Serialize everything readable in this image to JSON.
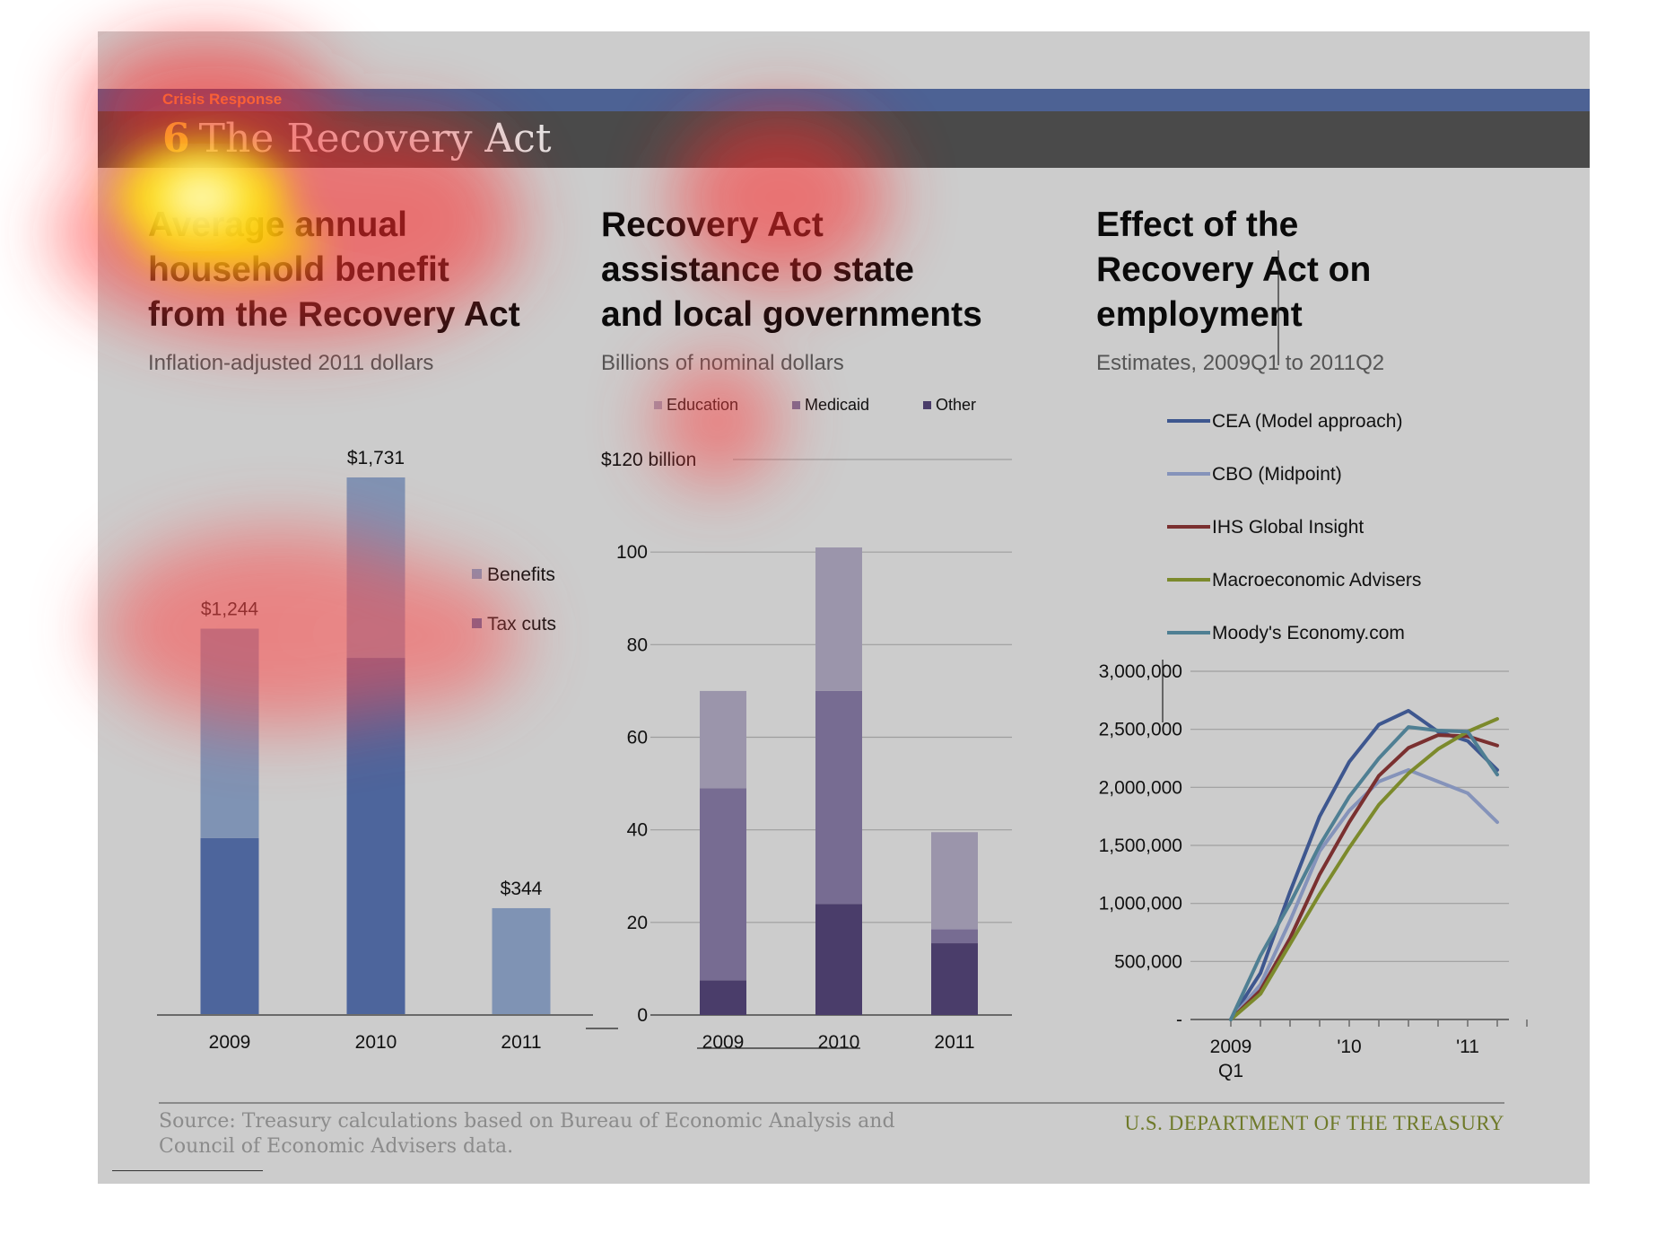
{
  "header": {
    "kicker": "Crisis Response",
    "number": "6",
    "title": "The Recovery Act"
  },
  "colors": {
    "header_blue": "#4d6294",
    "header_dark": "#4a4a4a",
    "kicker": "#f6a64b",
    "panel_bg": "#cccccc",
    "benefits": "#7f93b4",
    "tax_cuts": "#4d659c",
    "education": "#9b95ab",
    "medicaid": "#776c92",
    "other": "#4a3d6a",
    "cea": "#3e578f",
    "cbo": "#8593ba",
    "ihs": "#7a3030",
    "macro": "#7c8a2c",
    "moodys": "#4f7f93"
  },
  "chart_data": [
    {
      "type": "bar",
      "stacked": true,
      "title_lines": [
        "Average annual",
        "household benefit",
        "from the Recovery Act"
      ],
      "subtitle": "Inflation-adjusted 2011 dollars",
      "categories": [
        "2009",
        "2010",
        "2011"
      ],
      "series": [
        {
          "name": "Tax cuts",
          "values": [
            570,
            1150,
            0
          ]
        },
        {
          "name": "Benefits",
          "values": [
            674,
            581,
            344
          ]
        }
      ],
      "totals": [
        "$1,244",
        "$1,731",
        "$344"
      ],
      "total_values": [
        1244,
        1731,
        344
      ],
      "ylim": [
        0,
        1731
      ],
      "legend": [
        "Benefits",
        "Tax cuts"
      ],
      "legend_position": "right",
      "grid": false
    },
    {
      "type": "bar",
      "stacked": true,
      "title_lines": [
        "Recovery Act",
        "assistance to state",
        "and local governments"
      ],
      "subtitle": "Billions of nominal dollars",
      "categories": [
        "2009",
        "2010",
        "2011"
      ],
      "series": [
        {
          "name": "Other",
          "values": [
            7.5,
            24,
            15.5
          ]
        },
        {
          "name": "Medicaid",
          "values": [
            41.5,
            46,
            3
          ]
        },
        {
          "name": "Education",
          "values": [
            21,
            31,
            21
          ]
        }
      ],
      "yticks": [
        0,
        20,
        40,
        60,
        80,
        100,
        120
      ],
      "ytick_labels": [
        "0",
        "20",
        "40",
        "60",
        "80",
        "100",
        "$120 billion"
      ],
      "ylim": [
        0,
        120
      ],
      "legend": [
        "Education",
        "Medicaid",
        "Other"
      ],
      "legend_position": "top",
      "grid": true
    },
    {
      "type": "line",
      "title_lines": [
        "Effect of the",
        "Recovery Act on",
        "employment"
      ],
      "subtitle": "Estimates, 2009Q1 to 2011Q2",
      "x": [
        "2009Q1",
        "2009Q2",
        "2009Q3",
        "2009Q4",
        "2010Q1",
        "2010Q2",
        "2010Q3",
        "2010Q4",
        "2011Q1",
        "2011Q2"
      ],
      "series": [
        {
          "name": "CEA (Model approach)",
          "values": [
            0,
            400000,
            1100000,
            1750000,
            2220000,
            2540000,
            2660000,
            2480000,
            2400000,
            2150000
          ]
        },
        {
          "name": "CBO (Midpoint)",
          "values": [
            0,
            300000,
            850000,
            1450000,
            1800000,
            2050000,
            2150000,
            2050000,
            1950000,
            1700000
          ]
        },
        {
          "name": "IHS Global Insight",
          "values": [
            0,
            250000,
            700000,
            1250000,
            1700000,
            2100000,
            2340000,
            2450000,
            2440000,
            2360000
          ]
        },
        {
          "name": "Macroeconomic Advisers",
          "values": [
            0,
            220000,
            650000,
            1080000,
            1480000,
            1850000,
            2120000,
            2330000,
            2480000,
            2590000
          ]
        },
        {
          "name": "Moody's Economy.com",
          "values": [
            0,
            550000,
            1000000,
            1500000,
            1920000,
            2250000,
            2520000,
            2490000,
            2480000,
            2110000
          ]
        }
      ],
      "yticks": [
        0,
        500000,
        1000000,
        1500000,
        2000000,
        2500000,
        3000000
      ],
      "ytick_labels": [
        "-",
        "500,000",
        "1,000,000",
        "1,500,000",
        "2,000,000",
        "2,500,000",
        "3,000,000"
      ],
      "ylim": [
        0,
        3000000
      ],
      "xtick_labels": [
        {
          "index": 0,
          "lines": [
            "2009",
            "Q1"
          ]
        },
        {
          "index": 4,
          "lines": [
            "'10"
          ]
        },
        {
          "index": 8,
          "lines": [
            "'11"
          ]
        }
      ],
      "legend_position": "top",
      "grid": true
    }
  ],
  "footer": {
    "source": "Source: Treasury calculations based on Bureau of Economic Analysis and Council of Economic Advisers data.",
    "department": "U.S. DEPARTMENT OF THE TREASURY"
  }
}
